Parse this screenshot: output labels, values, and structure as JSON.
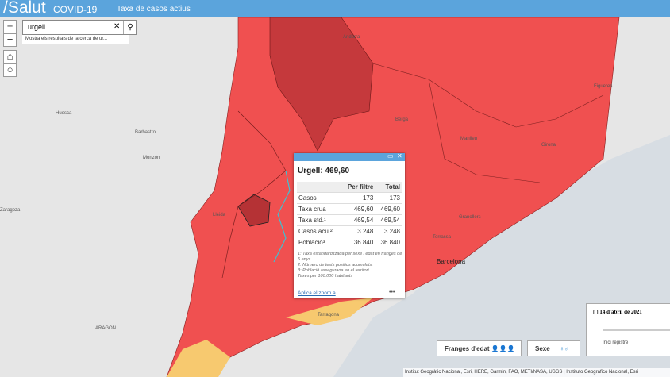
{
  "header": {
    "brand": "/Salut",
    "section": "COVID-19",
    "title": "Taxa de casos actius"
  },
  "search": {
    "query": "urgell",
    "hint": "Mostra els resultats de la cerca de ur..."
  },
  "map_labels": [
    "Andorra",
    "Huesca",
    "Barbastro",
    "Monzón",
    "Lleida",
    "Berga",
    "Manlleu",
    "Girona",
    "Figueres",
    "Terrassa",
    "Granollers",
    "Barcelona",
    "Tarragona",
    "ARAGÓN",
    "Zaragoza"
  ],
  "popup": {
    "title": "Urgell: 469,60",
    "table": {
      "header": [
        "Per filtre",
        "Total"
      ],
      "rows": [
        [
          "Casos",
          "173",
          "173"
        ],
        [
          "Taxa crua",
          "469,60",
          "469,60"
        ],
        [
          "Taxa std.¹",
          "469,54",
          "469,54"
        ],
        [
          "Casos acu.²",
          "3.248",
          "3.248"
        ],
        [
          "Població³",
          "36.840",
          "36.840"
        ]
      ]
    },
    "notes": [
      "1: Taxa estandarditzada per sexe i edat en franges de 5 anys.",
      "2: Número de tests positius acumulats.",
      "3: Població assegurada en el territori",
      "Taxes per 100.000 habitants"
    ],
    "zoom": "Aplica el zoom a"
  },
  "buttons": [
    "Franges d'edat",
    "Sexe"
  ],
  "timeline": {
    "date": "14 d'abril de 2021",
    "start": "Inici registre"
  },
  "attribution": "Institut Geogràfic Nacional, Esri, HERE, Garmin, FAO, METI/NASA, USGS | Instituto Geográfico Nacional, Esri"
}
